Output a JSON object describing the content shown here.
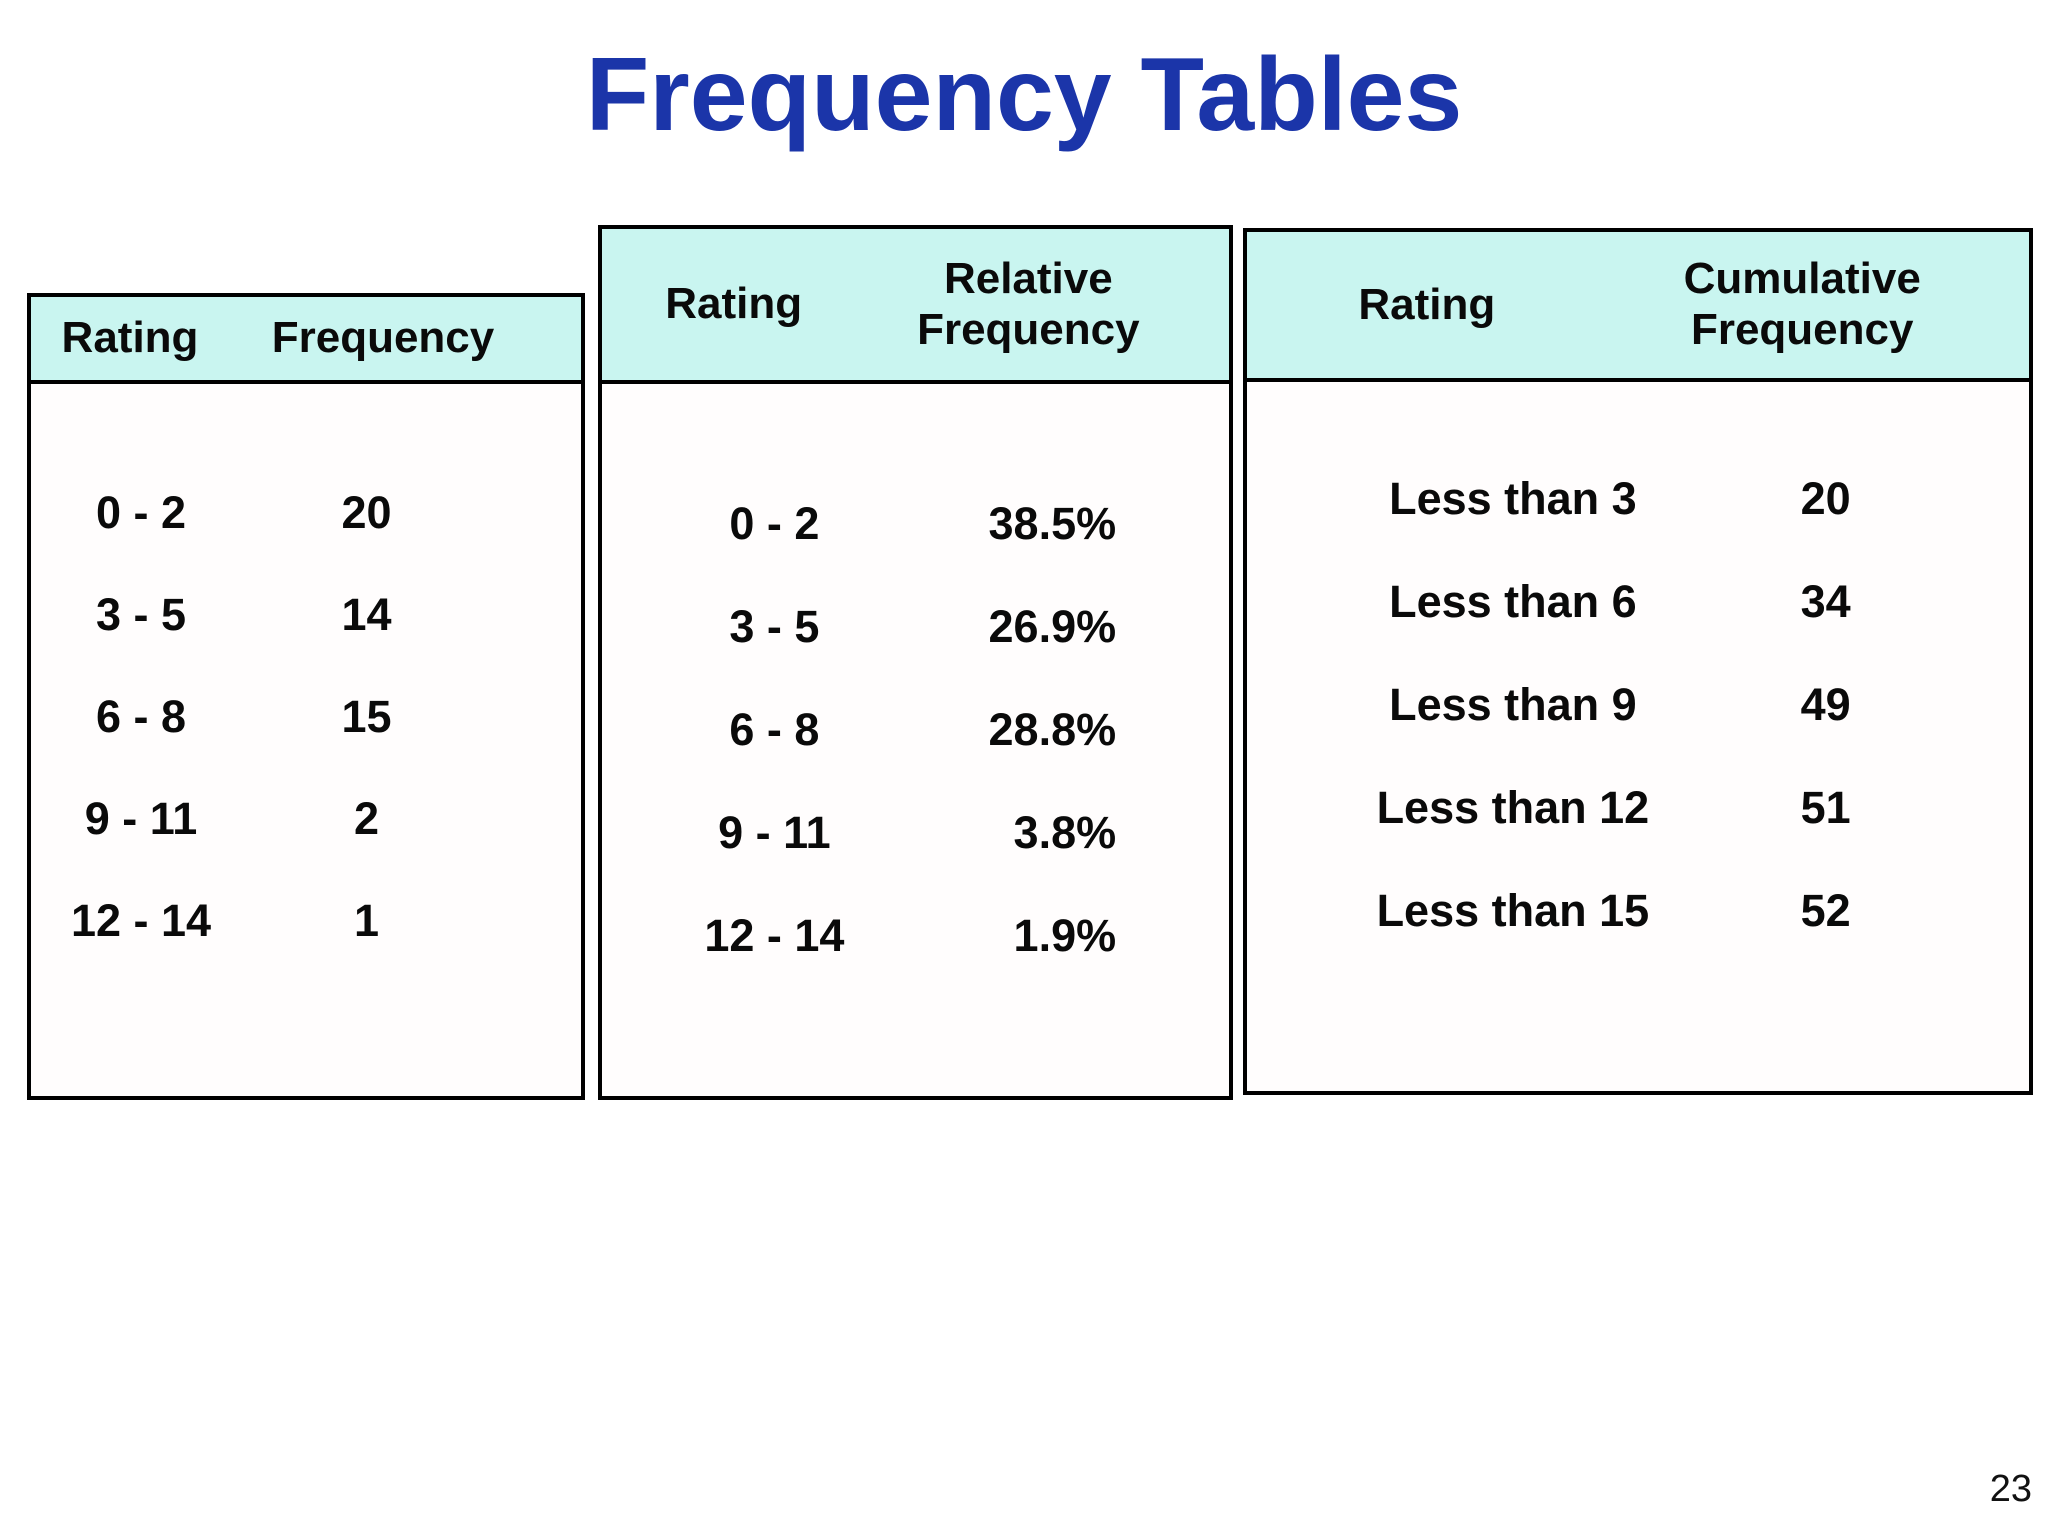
{
  "slide": {
    "title": "Frequency Tables",
    "page_number": "23"
  },
  "colors": {
    "title_text": "#1B35A9",
    "table_header_bg": "#C9F5F0",
    "table_border": "#000000",
    "body_text": "#0A0A0A",
    "background": "#FFFFFF"
  },
  "tables": [
    {
      "name": "frequency",
      "columns": [
        "Rating",
        "Frequency"
      ],
      "rows": [
        {
          "rating": "0 - 2",
          "value": "20"
        },
        {
          "rating": "3 - 5",
          "value": "14"
        },
        {
          "rating": "6 - 8",
          "value": "15"
        },
        {
          "rating": "9 - 11",
          "value": "2"
        },
        {
          "rating": "12 - 14",
          "value": "1"
        }
      ]
    },
    {
      "name": "relative-frequency",
      "columns": [
        "Rating",
        "Relative\nFrequency"
      ],
      "rows": [
        {
          "rating": "0 - 2",
          "value": "38.5%"
        },
        {
          "rating": "3 - 5",
          "value": "26.9%"
        },
        {
          "rating": "6 - 8",
          "value": "28.8%"
        },
        {
          "rating": "9 - 11",
          "value": "3.8%"
        },
        {
          "rating": "12 - 14",
          "value": "1.9%"
        }
      ]
    },
    {
      "name": "cumulative-frequency",
      "columns": [
        "Rating",
        "Cumulative\nFrequency"
      ],
      "rows": [
        {
          "rating": "Less than 3",
          "value": "20"
        },
        {
          "rating": "Less than 6",
          "value": "34"
        },
        {
          "rating": "Less than 9",
          "value": "49"
        },
        {
          "rating": "Less than 12",
          "value": "51"
        },
        {
          "rating": "Less than 15",
          "value": "52"
        }
      ]
    }
  ],
  "chart_data": [
    {
      "type": "table",
      "title": "Frequency",
      "columns": [
        "Rating",
        "Frequency"
      ],
      "rows": [
        [
          "0 - 2",
          20
        ],
        [
          "3 - 5",
          14
        ],
        [
          "6 - 8",
          15
        ],
        [
          "9 - 11",
          2
        ],
        [
          "12 - 14",
          1
        ]
      ]
    },
    {
      "type": "table",
      "title": "Relative Frequency",
      "columns": [
        "Rating",
        "Relative Frequency"
      ],
      "rows": [
        [
          "0 - 2",
          "38.5%"
        ],
        [
          "3 - 5",
          "26.9%"
        ],
        [
          "6 - 8",
          "28.8%"
        ],
        [
          "9 - 11",
          "3.8%"
        ],
        [
          "12 - 14",
          "1.9%"
        ]
      ]
    },
    {
      "type": "table",
      "title": "Cumulative Frequency",
      "columns": [
        "Rating",
        "Cumulative Frequency"
      ],
      "rows": [
        [
          "Less than 3",
          20
        ],
        [
          "Less than 6",
          34
        ],
        [
          "Less than 9",
          49
        ],
        [
          "Less than 12",
          51
        ],
        [
          "Less than 15",
          52
        ]
      ]
    }
  ]
}
